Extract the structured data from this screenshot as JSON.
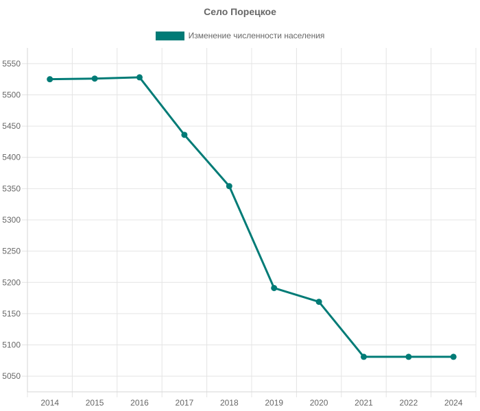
{
  "chart_data": {
    "type": "line",
    "title": "Село Порецкое",
    "xlabel": "",
    "ylabel": "",
    "categories": [
      "2014",
      "2015",
      "2016",
      "2017",
      "2018",
      "2019",
      "2020",
      "2021",
      "2022",
      "2024"
    ],
    "series": [
      {
        "name": "Изменение численности населения",
        "values": [
          5525,
          5526,
          5528,
          5436,
          5354,
          5191,
          5169,
          5081,
          5081,
          5081
        ],
        "color": "#007b76"
      }
    ],
    "ylim": [
      5025,
      5575
    ],
    "yticks": [
      5050,
      5100,
      5150,
      5200,
      5250,
      5300,
      5350,
      5400,
      5450,
      5500,
      5550
    ],
    "grid": true,
    "legend_position": "top"
  }
}
